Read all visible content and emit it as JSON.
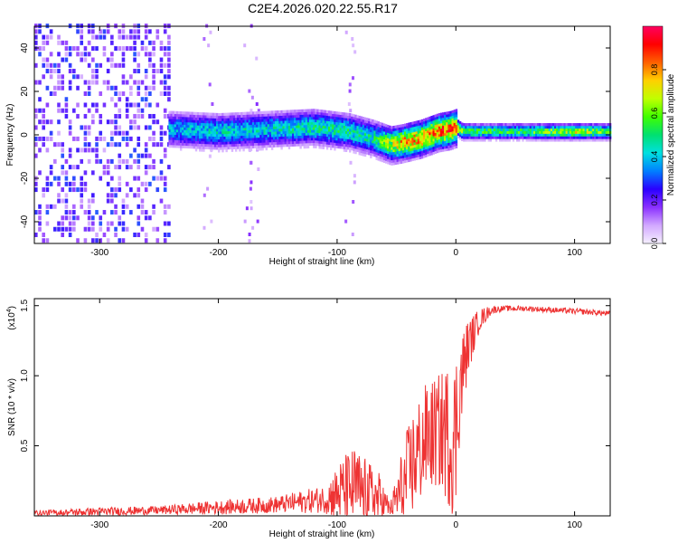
{
  "title": "C2E4.2026.020.22.55.R17",
  "chart_data": [
    {
      "type": "heatmap",
      "xlabel": "Height of straight line (km)",
      "ylabel": "Frequency (Hz)",
      "xlim": [
        -355,
        130
      ],
      "ylim": [
        -50,
        50
      ],
      "xticks": [
        -300,
        -200,
        -100,
        0,
        100
      ],
      "xtick_labels": [
        "-300",
        "-200",
        "-100",
        "0",
        "100"
      ],
      "yticks": [
        -40,
        -20,
        0,
        20,
        40
      ],
      "ytick_labels": [
        "-40",
        "-20",
        "0",
        "20",
        "40"
      ],
      "colorbar": {
        "label": "Normalized spectral amplitude",
        "range": [
          0.0,
          1.0
        ],
        "ticks": [
          0.0,
          0.2,
          0.4,
          0.6,
          0.8
        ],
        "tick_labels": [
          "0.0",
          "0.2",
          "0.4",
          "0.6",
          "0.8"
        ],
        "colors": [
          "#f5f0ff",
          "#d2a8ff",
          "#8a30ff",
          "#2a00ff",
          "#0080ff",
          "#00e0e0",
          "#00e070",
          "#40ff00",
          "#c0ff00",
          "#ffd000",
          "#ff6000",
          "#ff0000",
          "#ff0060"
        ]
      },
      "ridge": {
        "x": [
          -240,
          -200,
          -160,
          -120,
          -90,
          -70,
          -55,
          -45,
          -30,
          -15,
          -5,
          0,
          5,
          50,
          100,
          130
        ],
        "freq": [
          2,
          1,
          2,
          3,
          1,
          -2,
          -5,
          -4,
          -2,
          1,
          2,
          3,
          1,
          1,
          1,
          1
        ],
        "amp": [
          0.4,
          0.45,
          0.45,
          0.5,
          0.5,
          0.5,
          0.7,
          0.8,
          0.85,
          0.9,
          0.9,
          0.85,
          0.6,
          0.55,
          0.7,
          0.6
        ]
      }
    },
    {
      "type": "line",
      "xlabel": "Height of straight line (km)",
      "ylabel": "SNR (10 * v/v)",
      "y_scale_label": "(x10",
      "y_scale_exp": "4",
      "y_scale_close": ")",
      "xlim": [
        -355,
        130
      ],
      "ylim": [
        0,
        1.55
      ],
      "xticks": [
        -300,
        -200,
        -100,
        0,
        100
      ],
      "xtick_labels": [
        "-300",
        "-200",
        "-100",
        "0",
        "100"
      ],
      "yticks": [
        0.5,
        1.0,
        1.5
      ],
      "ytick_labels": [
        "0.5",
        "1.0",
        "1.5"
      ],
      "color": "#ee3333",
      "envelope": {
        "x": [
          -355,
          -300,
          -250,
          -200,
          -150,
          -110,
          -95,
          -85,
          -75,
          -65,
          -55,
          -45,
          -35,
          -25,
          -15,
          -8,
          -3,
          0,
          3,
          10,
          20,
          30,
          40,
          60,
          80,
          100,
          120,
          130
        ],
        "base": [
          0.02,
          0.03,
          0.04,
          0.06,
          0.08,
          0.12,
          0.18,
          0.2,
          0.15,
          0.12,
          0.05,
          0.2,
          0.4,
          0.55,
          0.6,
          0.6,
          0.5,
          0.6,
          0.9,
          1.2,
          1.4,
          1.47,
          1.48,
          1.48,
          1.47,
          1.46,
          1.45,
          1.44
        ],
        "amp": [
          0.02,
          0.03,
          0.03,
          0.05,
          0.06,
          0.1,
          0.25,
          0.3,
          0.25,
          0.2,
          0.05,
          0.3,
          0.4,
          0.4,
          0.4,
          0.5,
          0.5,
          0.6,
          0.4,
          0.2,
          0.08,
          0.03,
          0.02,
          0.02,
          0.02,
          0.02,
          0.02,
          0.02
        ]
      }
    }
  ]
}
